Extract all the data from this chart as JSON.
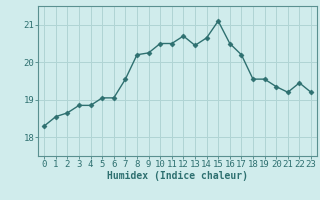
{
  "x": [
    0,
    1,
    2,
    3,
    4,
    5,
    6,
    7,
    8,
    9,
    10,
    11,
    12,
    13,
    14,
    15,
    16,
    17,
    18,
    19,
    20,
    21,
    22,
    23
  ],
  "y": [
    18.3,
    18.55,
    18.65,
    18.85,
    18.85,
    19.05,
    19.05,
    19.55,
    20.2,
    20.25,
    20.5,
    20.5,
    20.7,
    20.45,
    20.65,
    21.1,
    20.5,
    20.2,
    19.55,
    19.55,
    19.35,
    19.2,
    19.45,
    19.2
  ],
  "line_color": "#2e7070",
  "marker": "D",
  "marker_size": 2.5,
  "background_color": "#d0ecec",
  "grid_color": "#b0d4d4",
  "xlabel": "Humidex (Indice chaleur)",
  "ylim": [
    17.5,
    21.5
  ],
  "yticks": [
    18,
    19,
    20,
    21
  ],
  "xlim": [
    -0.5,
    23.5
  ],
  "xticks": [
    0,
    1,
    2,
    3,
    4,
    5,
    6,
    7,
    8,
    9,
    10,
    11,
    12,
    13,
    14,
    15,
    16,
    17,
    18,
    19,
    20,
    21,
    22,
    23
  ],
  "tick_color": "#2e7070",
  "xlabel_fontsize": 7,
  "tick_fontsize": 6.5,
  "line_width": 1.0
}
